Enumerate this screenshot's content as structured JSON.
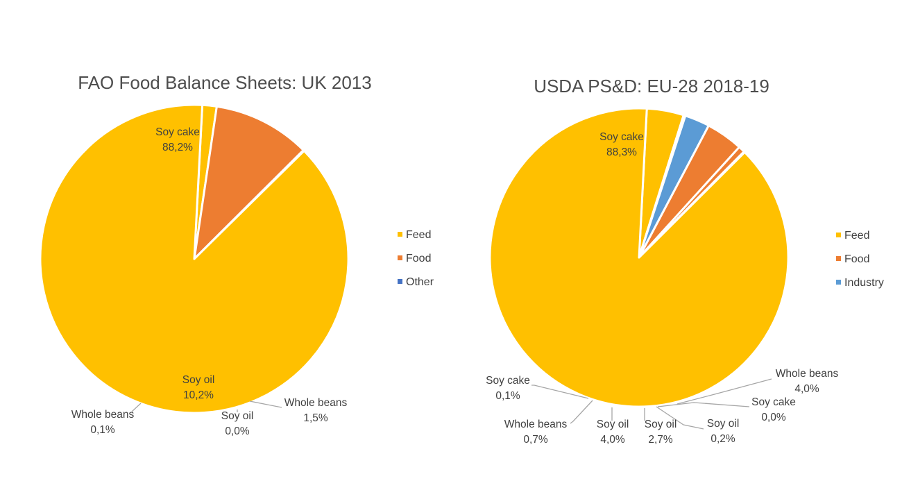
{
  "chart_data": [
    {
      "type": "pie",
      "title": "FAO Food Balance Sheets: UK 2013",
      "legend": {
        "position": "right",
        "entries": [
          {
            "name": "Feed",
            "color": "#FFC000"
          },
          {
            "name": "Food",
            "color": "#ED7D31"
          },
          {
            "name": "Other",
            "color": "#4472C4"
          }
        ]
      },
      "slices": [
        {
          "group": "Feed",
          "name": "Whole beans",
          "value": 1.5,
          "label_line1": "Whole beans",
          "label_line2": "1,5%",
          "color": "#FFC000"
        },
        {
          "group": "Food",
          "name": "Soy oil",
          "value": 0.0,
          "label_line1": "Soy oil",
          "label_line2": "0,0%",
          "color": "#ED7D31"
        },
        {
          "group": "Food",
          "name": "Soy oil",
          "value": 10.2,
          "label_line1": "Soy oil",
          "label_line2": "10,2%",
          "color": "#ED7D31"
        },
        {
          "group": "Food",
          "name": "Whole beans",
          "value": 0.1,
          "label_line1": "Whole beans",
          "label_line2": "0,1%",
          "color": "#ED7D31"
        },
        {
          "group": "Feed",
          "name": "Soy cake",
          "value": 88.2,
          "label_line1": "Soy cake",
          "label_line2": "88,2%",
          "color": "#FFC000"
        }
      ]
    },
    {
      "type": "pie",
      "title": "USDA PS&D: EU-28 2018-19",
      "legend": {
        "position": "right",
        "entries": [
          {
            "name": "Feed",
            "color": "#FFC000"
          },
          {
            "name": "Food",
            "color": "#ED7D31"
          },
          {
            "name": "Industry",
            "color": "#5B9BD5"
          }
        ]
      },
      "slices": [
        {
          "group": "Feed",
          "name": "Whole beans",
          "value": 4.0,
          "label_line1": "Whole beans",
          "label_line2": "4,0%",
          "color": "#FFC000"
        },
        {
          "group": "Food",
          "name": "Soy cake",
          "value": 0.0,
          "label_line1": "Soy cake",
          "label_line2": "0,0%",
          "color": "#ED7D31"
        },
        {
          "group": "Food",
          "name": "Soy oil",
          "value": 0.2,
          "label_line1": "Soy oil",
          "label_line2": "0,2%",
          "color": "#ED7D31"
        },
        {
          "group": "Industry",
          "name": "Soy oil",
          "value": 2.7,
          "label_line1": "Soy oil",
          "label_line2": "2,7%",
          "color": "#5B9BD5"
        },
        {
          "group": "Food",
          "name": "Soy oil",
          "value": 4.0,
          "label_line1": "Soy oil",
          "label_line2": "4,0%",
          "color": "#ED7D31"
        },
        {
          "group": "Food",
          "name": "Whole beans",
          "value": 0.7,
          "label_line1": "Whole beans",
          "label_line2": "0,7%",
          "color": "#ED7D31"
        },
        {
          "group": "Food",
          "name": "Soy cake",
          "value": 0.1,
          "label_line1": "Soy cake",
          "label_line2": "0,1%",
          "color": "#ED7D31"
        },
        {
          "group": "Feed",
          "name": "Soy cake",
          "value": 88.3,
          "label_line1": "Soy cake",
          "label_line2": "88,3%",
          "color": "#FFC000"
        }
      ]
    }
  ]
}
